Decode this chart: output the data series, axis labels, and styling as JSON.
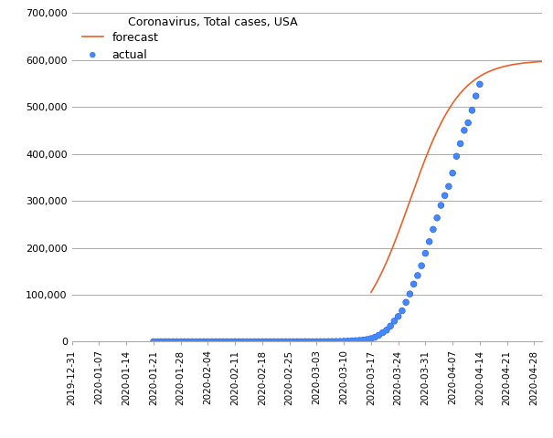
{
  "title": "Coronavirus, Total cases, USA",
  "forecast_label": "forecast",
  "actual_label": "actual",
  "forecast_color": "#E8622A",
  "actual_dot_color": "#2255CC",
  "actual_dot_face": "#4488FF",
  "background_color": "#FFFFFF",
  "grid_color": "#AAAAAA",
  "ylim": [
    0,
    700000
  ],
  "yticks": [
    0,
    100000,
    200000,
    300000,
    400000,
    500000,
    600000,
    700000
  ],
  "ytick_labels": [
    "0",
    "100,000",
    "200,000",
    "300,000",
    "400,000",
    "500,000",
    "600,000",
    "700,000"
  ],
  "x_start": "2019-12-31",
  "x_end": "2020-04-30",
  "xtick_dates": [
    "2019-12-31",
    "2020-01-07",
    "2020-01-14",
    "2020-01-21",
    "2020-01-28",
    "2020-02-04",
    "2020-02-11",
    "2020-02-18",
    "2020-02-25",
    "2020-03-03",
    "2020-03-10",
    "2020-03-17",
    "2020-03-24",
    "2020-03-31",
    "2020-04-07",
    "2020-04-14",
    "2020-04-21",
    "2020-04-28"
  ],
  "actual_dates": [
    "2020-01-21",
    "2020-01-22",
    "2020-01-23",
    "2020-01-24",
    "2020-01-25",
    "2020-01-26",
    "2020-01-27",
    "2020-01-28",
    "2020-01-29",
    "2020-01-30",
    "2020-01-31",
    "2020-02-01",
    "2020-02-02",
    "2020-02-03",
    "2020-02-04",
    "2020-02-05",
    "2020-02-06",
    "2020-02-07",
    "2020-02-08",
    "2020-02-09",
    "2020-02-10",
    "2020-02-11",
    "2020-02-12",
    "2020-02-13",
    "2020-02-14",
    "2020-02-15",
    "2020-02-16",
    "2020-02-17",
    "2020-02-18",
    "2020-02-19",
    "2020-02-20",
    "2020-02-21",
    "2020-02-22",
    "2020-02-23",
    "2020-02-24",
    "2020-02-25",
    "2020-02-26",
    "2020-02-27",
    "2020-02-28",
    "2020-02-29",
    "2020-03-01",
    "2020-03-02",
    "2020-03-03",
    "2020-03-04",
    "2020-03-05",
    "2020-03-06",
    "2020-03-07",
    "2020-03-08",
    "2020-03-09",
    "2020-03-10",
    "2020-03-11",
    "2020-03-12",
    "2020-03-13",
    "2020-03-14",
    "2020-03-15",
    "2020-03-16",
    "2020-03-17",
    "2020-03-18",
    "2020-03-19",
    "2020-03-20",
    "2020-03-21",
    "2020-03-22",
    "2020-03-23",
    "2020-03-24",
    "2020-03-25",
    "2020-03-26",
    "2020-03-27",
    "2020-03-28",
    "2020-03-29",
    "2020-03-30",
    "2020-03-31",
    "2020-04-01",
    "2020-04-02",
    "2020-04-03",
    "2020-04-04",
    "2020-04-05",
    "2020-04-06",
    "2020-04-07",
    "2020-04-08",
    "2020-04-09",
    "2020-04-10",
    "2020-04-11",
    "2020-04-12",
    "2020-04-13",
    "2020-04-14"
  ],
  "actual_values": [
    1,
    1,
    1,
    2,
    2,
    5,
    5,
    5,
    5,
    5,
    7,
    8,
    8,
    11,
    11,
    12,
    12,
    12,
    12,
    12,
    13,
    13,
    13,
    13,
    13,
    13,
    13,
    13,
    13,
    13,
    13,
    13,
    15,
    15,
    51,
    51,
    57,
    58,
    60,
    68,
    74,
    98,
    118,
    149,
    217,
    262,
    402,
    518,
    583,
    959,
    1281,
    1663,
    2179,
    2727,
    3499,
    4632,
    6421,
    9197,
    13677,
    19100,
    24506,
    33276,
    43847,
    53726,
    65778,
    83836,
    101657,
    122653,
    140904,
    161807,
    188172,
    213144,
    239279,
    263713,
    290356,
    311357,
    330891,
    359184,
    395011,
    421923,
    450249,
    466299,
    492881,
    523459,
    548481
  ],
  "figsize": [
    6.05,
    4.8
  ],
  "dpi": 100
}
